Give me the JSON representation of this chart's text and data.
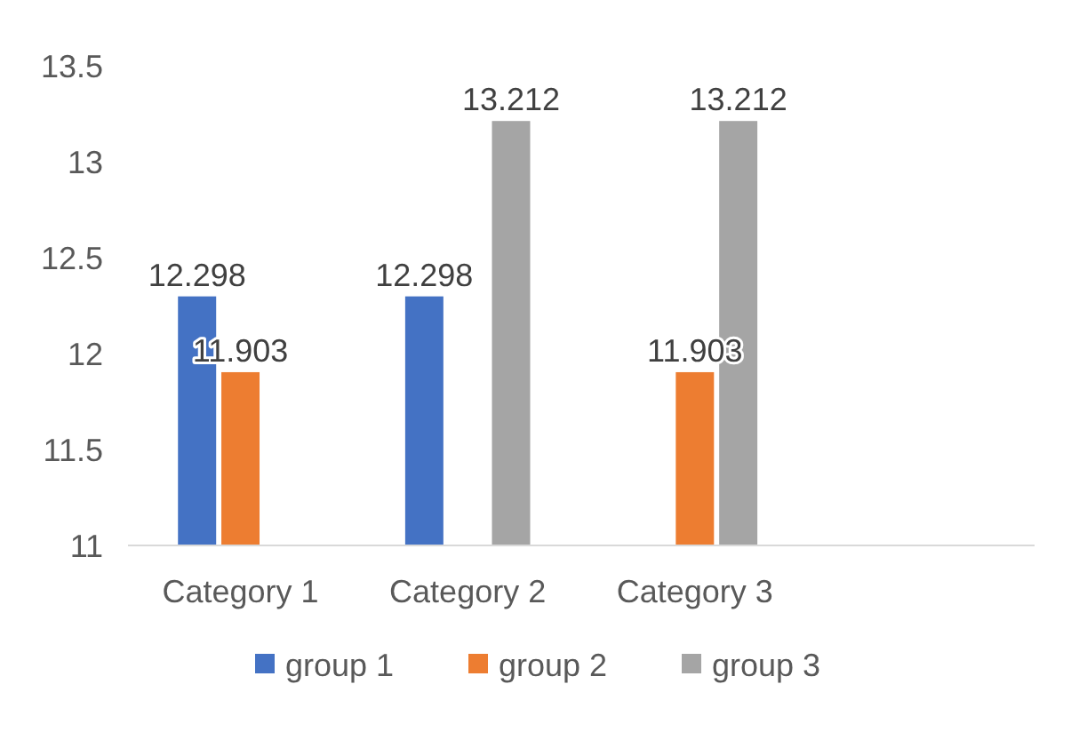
{
  "chart_data": {
    "type": "bar",
    "categories": [
      "Category 1",
      "Category 2",
      "Category 3",
      null
    ],
    "series": [
      {
        "name": "group 1",
        "color": "#4472c4",
        "values": [
          12.298,
          12.298,
          null,
          null
        ]
      },
      {
        "name": "group 2",
        "color": "#ed7d31",
        "values": [
          11.903,
          null,
          11.903,
          null
        ]
      },
      {
        "name": "group 3",
        "color": "#a5a5a5",
        "values": [
          null,
          13.212,
          13.212,
          null
        ]
      }
    ],
    "ylim": [
      11,
      13.5
    ],
    "yticks": [
      11,
      11.5,
      12,
      12.5,
      13,
      13.5
    ],
    "data_labels": true,
    "legend": "bottom",
    "grid": false
  }
}
